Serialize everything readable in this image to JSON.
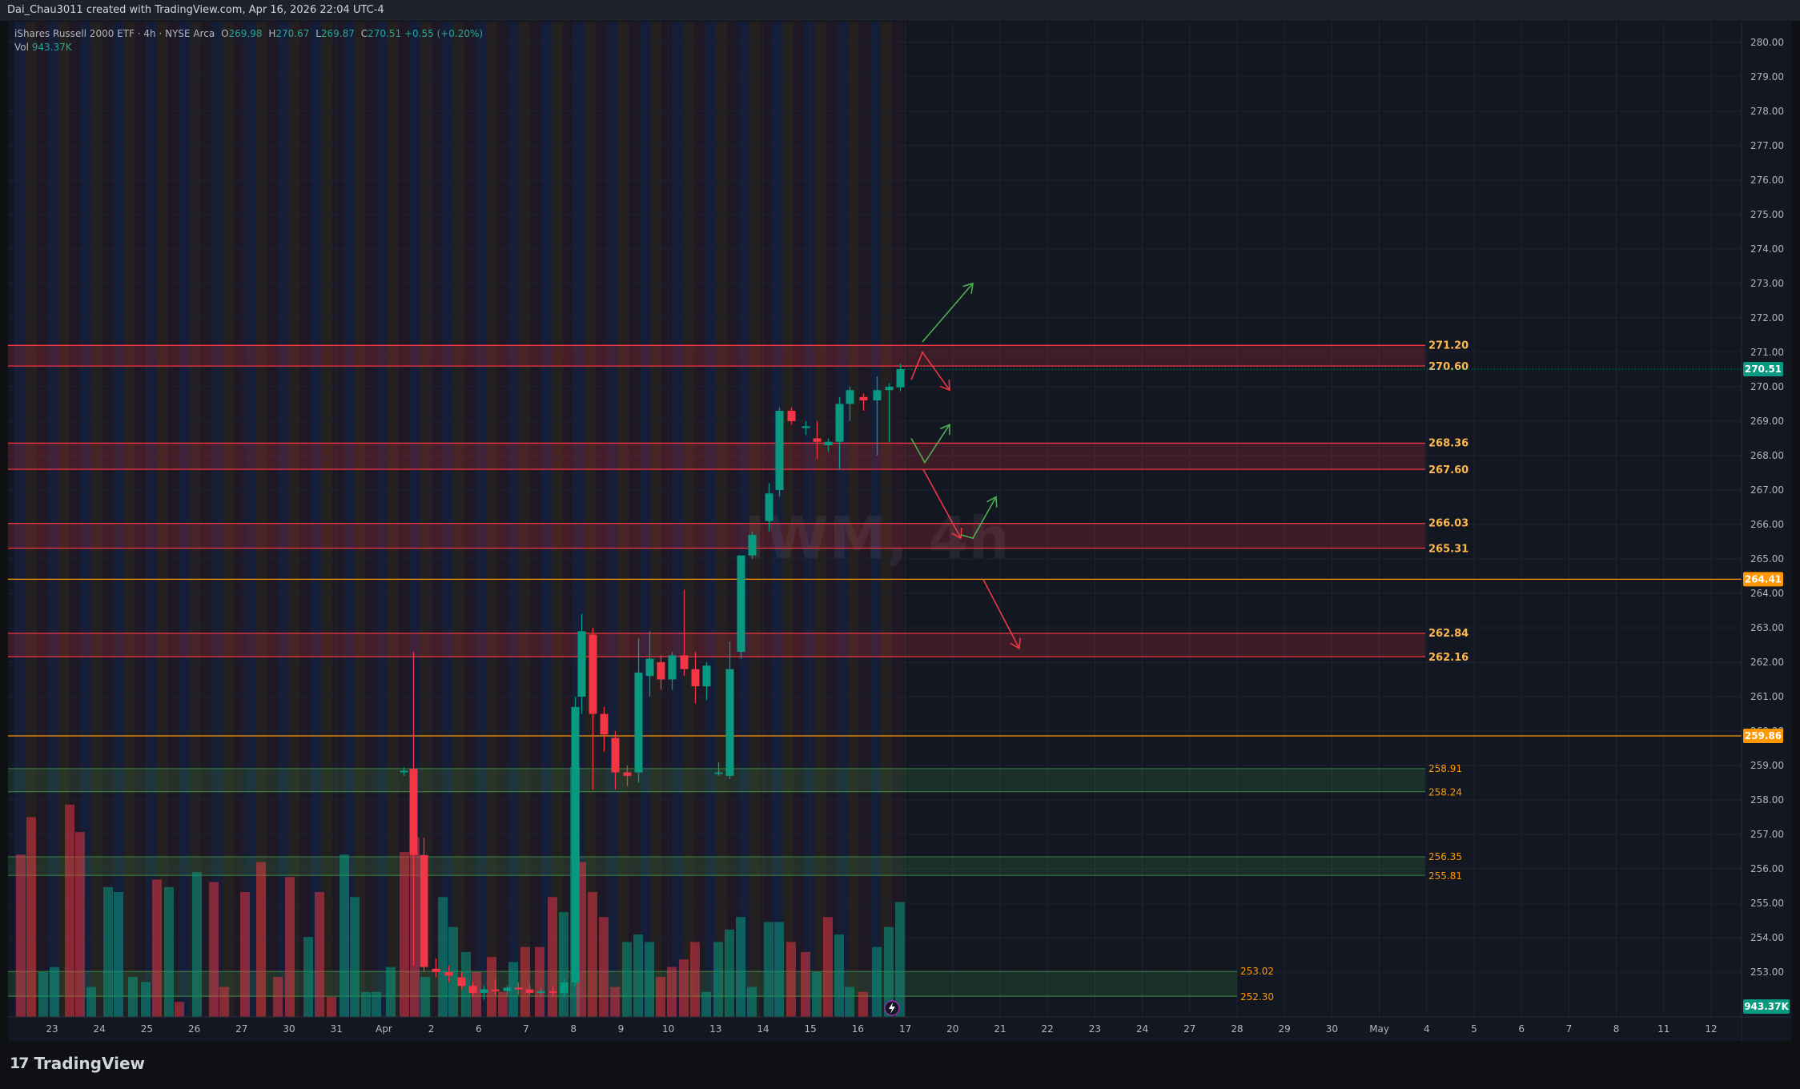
{
  "header": {
    "created_by": "Dai_Chau3011 created with TradingView.com, Apr 16, 2026 22:04 UTC-4"
  },
  "legend": {
    "symbol": "iShares Russell 2000 ETF · 4h · NYSE Arca",
    "open_label": "O",
    "open": "269.98",
    "high_label": "H",
    "high": "270.67",
    "low_label": "L",
    "low": "269.87",
    "close_label": "C",
    "close": "270.51",
    "change": "+0.55 (+0.20%)",
    "vol_label": "Vol",
    "vol": "943.37K"
  },
  "watermark": "IWM, 4h",
  "brand": {
    "name": "TradingView"
  },
  "colors": {
    "background": "#131722",
    "up": "#089981",
    "down": "#f23645",
    "zone_red": "#f23645",
    "zone_green": "#4caf50",
    "level_orange": "#ff9800",
    "arrow_green": "#4caf50",
    "arrow_red": "#f23645",
    "last_price_badge": "#089981"
  },
  "chart_data": {
    "type": "candlestick",
    "symbol": "IWM",
    "timeframe": "4h",
    "ylim": [
      251.7,
      280.6
    ],
    "y_ticks": [
      "280.00",
      "279.00",
      "278.00",
      "277.00",
      "276.00",
      "275.00",
      "274.00",
      "273.00",
      "272.00",
      "271.00",
      "270.00",
      "269.00",
      "268.00",
      "267.00",
      "266.00",
      "265.00",
      "264.00",
      "263.00",
      "262.00",
      "261.00",
      "260.00",
      "259.00",
      "258.00",
      "257.00",
      "256.00",
      "255.00",
      "254.00",
      "253.00"
    ],
    "x_ticks": [
      "23",
      "24",
      "25",
      "26",
      "27",
      "30",
      "31",
      "Apr",
      "2",
      "6",
      "7",
      "8",
      "9",
      "10",
      "13",
      "14",
      "15",
      "16",
      "17",
      "20",
      "21",
      "22",
      "23",
      "24",
      "27",
      "28",
      "29",
      "30",
      "May",
      "4",
      "5",
      "6",
      "7",
      "8",
      "11",
      "12"
    ],
    "candles": [
      {
        "x": 494.5,
        "o": 258.82,
        "h": 258.95,
        "l": 258.7,
        "c": 258.85
      },
      {
        "x": 506.5,
        "o": 258.9,
        "h": 262.3,
        "l": 253.2,
        "c": 256.4
      },
      {
        "x": 519.5,
        "o": 256.4,
        "h": 256.9,
        "l": 253.0,
        "c": 253.15
      },
      {
        "x": 534.5,
        "o": 253.1,
        "h": 253.4,
        "l": 252.85,
        "c": 253.0
      },
      {
        "x": 550.5,
        "o": 253.0,
        "h": 253.2,
        "l": 252.7,
        "c": 252.9
      },
      {
        "x": 566.5,
        "o": 252.85,
        "h": 253.0,
        "l": 252.5,
        "c": 252.6
      },
      {
        "x": 580.5,
        "o": 252.6,
        "h": 252.7,
        "l": 252.3,
        "c": 252.4
      },
      {
        "x": 594.5,
        "o": 252.4,
        "h": 252.6,
        "l": 252.2,
        "c": 252.5
      },
      {
        "x": 608.5,
        "o": 252.5,
        "h": 252.8,
        "l": 252.3,
        "c": 252.45
      },
      {
        "x": 623.5,
        "o": 252.45,
        "h": 252.6,
        "l": 252.3,
        "c": 252.55
      },
      {
        "x": 637.5,
        "o": 252.55,
        "h": 252.7,
        "l": 252.35,
        "c": 252.5
      },
      {
        "x": 651.5,
        "o": 252.5,
        "h": 252.65,
        "l": 252.35,
        "c": 252.4
      },
      {
        "x": 665.5,
        "o": 252.4,
        "h": 252.55,
        "l": 252.3,
        "c": 252.45
      },
      {
        "x": 680.5,
        "o": 252.45,
        "h": 252.6,
        "l": 252.3,
        "c": 252.4
      },
      {
        "x": 694.5,
        "o": 252.4,
        "h": 252.8,
        "l": 252.3,
        "c": 252.7
      },
      {
        "x": 708.5,
        "o": 252.7,
        "h": 261.0,
        "l": 252.6,
        "c": 260.7
      },
      {
        "x": 716.5,
        "o": 261.0,
        "h": 263.4,
        "l": 260.5,
        "c": 262.9
      },
      {
        "x": 730.5,
        "o": 262.8,
        "h": 263.0,
        "l": 258.3,
        "c": 260.5
      },
      {
        "x": 744.5,
        "o": 260.5,
        "h": 260.7,
        "l": 259.4,
        "c": 259.9
      },
      {
        "x": 758.5,
        "o": 259.8,
        "h": 260.0,
        "l": 258.3,
        "c": 258.8
      },
      {
        "x": 773.5,
        "o": 258.8,
        "h": 259.0,
        "l": 258.4,
        "c": 258.7
      },
      {
        "x": 787.5,
        "o": 258.8,
        "h": 262.7,
        "l": 258.5,
        "c": 261.7
      },
      {
        "x": 801.5,
        "o": 261.6,
        "h": 262.9,
        "l": 261.0,
        "c": 262.1
      },
      {
        "x": 815.5,
        "o": 262.0,
        "h": 262.2,
        "l": 261.2,
        "c": 261.5
      },
      {
        "x": 829.5,
        "o": 261.5,
        "h": 262.3,
        "l": 261.2,
        "c": 262.2
      },
      {
        "x": 844.5,
        "o": 262.2,
        "h": 264.1,
        "l": 261.6,
        "c": 261.8
      },
      {
        "x": 858.5,
        "o": 261.8,
        "h": 262.3,
        "l": 260.8,
        "c": 261.3
      },
      {
        "x": 872.5,
        "o": 261.3,
        "h": 262.0,
        "l": 260.9,
        "c": 261.9
      },
      {
        "x": 887.5,
        "o": 258.8,
        "h": 259.1,
        "l": 258.7,
        "c": 258.8
      },
      {
        "x": 901.5,
        "o": 258.7,
        "h": 262.6,
        "l": 258.6,
        "c": 261.8
      },
      {
        "x": 915.5,
        "o": 262.3,
        "h": 265.1,
        "l": 262.1,
        "c": 265.1
      },
      {
        "x": 929.5,
        "o": 265.1,
        "h": 265.8,
        "l": 265.0,
        "c": 265.7
      },
      {
        "x": 950.5,
        "o": 266.1,
        "h": 267.2,
        "l": 265.8,
        "c": 266.9
      },
      {
        "x": 963.5,
        "o": 267.0,
        "h": 269.4,
        "l": 266.8,
        "c": 269.3
      },
      {
        "x": 978.5,
        "o": 269.3,
        "h": 269.4,
        "l": 268.9,
        "c": 269.0
      },
      {
        "x": 996.5,
        "o": 268.8,
        "h": 269.0,
        "l": 268.6,
        "c": 268.85
      },
      {
        "x": 1010.5,
        "o": 268.5,
        "h": 269.0,
        "l": 267.9,
        "c": 268.4
      },
      {
        "x": 1024.5,
        "o": 268.3,
        "h": 268.5,
        "l": 268.1,
        "c": 268.4
      },
      {
        "x": 1038.5,
        "o": 268.4,
        "h": 269.7,
        "l": 267.6,
        "c": 269.5
      },
      {
        "x": 1051.5,
        "o": 269.5,
        "h": 270.0,
        "l": 269.0,
        "c": 269.9
      },
      {
        "x": 1068.5,
        "o": 269.7,
        "h": 269.8,
        "l": 269.3,
        "c": 269.6
      },
      {
        "x": 1085.5,
        "o": 269.6,
        "h": 270.3,
        "l": 268.0,
        "c": 269.9
      },
      {
        "x": 1100.5,
        "o": 269.9,
        "h": 270.1,
        "l": 268.4,
        "c": 270.0
      },
      {
        "x": 1114.5,
        "o": 269.98,
        "h": 270.67,
        "l": 269.87,
        "c": 270.51
      }
    ],
    "volume": [
      {
        "x": 16,
        "v": 0.65,
        "up": false
      },
      {
        "x": 29,
        "v": 0.8,
        "up": false
      },
      {
        "x": 44,
        "v": 0.18,
        "up": true
      },
      {
        "x": 58,
        "v": 0.2,
        "up": true
      },
      {
        "x": 77,
        "v": 0.85,
        "up": false
      },
      {
        "x": 90,
        "v": 0.74,
        "up": false
      },
      {
        "x": 104,
        "v": 0.12,
        "up": true
      },
      {
        "x": 125,
        "v": 0.52,
        "up": true
      },
      {
        "x": 138,
        "v": 0.5,
        "up": true
      },
      {
        "x": 156,
        "v": 0.16,
        "up": true
      },
      {
        "x": 172,
        "v": 0.14,
        "up": true
      },
      {
        "x": 186,
        "v": 0.55,
        "up": false
      },
      {
        "x": 201,
        "v": 0.52,
        "up": true
      },
      {
        "x": 214,
        "v": 0.06,
        "up": false
      },
      {
        "x": 236,
        "v": 0.58,
        "up": true
      },
      {
        "x": 257,
        "v": 0.54,
        "up": false
      },
      {
        "x": 270,
        "v": 0.12,
        "up": false
      },
      {
        "x": 296,
        "v": 0.5,
        "up": false
      },
      {
        "x": 316,
        "v": 0.62,
        "up": false
      },
      {
        "x": 337,
        "v": 0.16,
        "up": false
      },
      {
        "x": 352,
        "v": 0.56,
        "up": false
      },
      {
        "x": 375,
        "v": 0.32,
        "up": true
      },
      {
        "x": 389,
        "v": 0.5,
        "up": false
      },
      {
        "x": 404,
        "v": 0.08,
        "up": false
      },
      {
        "x": 420,
        "v": 0.65,
        "up": true
      },
      {
        "x": 433,
        "v": 0.48,
        "up": true
      },
      {
        "x": 447,
        "v": 0.1,
        "up": true
      },
      {
        "x": 460,
        "v": 0.1,
        "up": true
      },
      {
        "x": 478,
        "v": 0.2,
        "up": true
      },
      {
        "x": 495,
        "v": 0.66,
        "up": false
      },
      {
        "x": 508,
        "v": 0.72,
        "up": false
      },
      {
        "x": 521,
        "v": 0.16,
        "up": true
      },
      {
        "x": 543,
        "v": 0.48,
        "up": true
      },
      {
        "x": 556,
        "v": 0.36,
        "up": true
      },
      {
        "x": 572,
        "v": 0.26,
        "up": true
      },
      {
        "x": 585,
        "v": 0.18,
        "up": false
      },
      {
        "x": 604,
        "v": 0.24,
        "up": false
      },
      {
        "x": 618,
        "v": 0.1,
        "up": false
      },
      {
        "x": 631,
        "v": 0.22,
        "up": true
      },
      {
        "x": 646,
        "v": 0.28,
        "up": false
      },
      {
        "x": 664,
        "v": 0.28,
        "up": false
      },
      {
        "x": 680,
        "v": 0.48,
        "up": false
      },
      {
        "x": 694,
        "v": 0.42,
        "up": true
      },
      {
        "x": 708,
        "v": 1.0,
        "up": true
      },
      {
        "x": 716,
        "v": 0.62,
        "up": false
      },
      {
        "x": 730,
        "v": 0.5,
        "up": false
      },
      {
        "x": 744,
        "v": 0.4,
        "up": false
      },
      {
        "x": 758,
        "v": 0.12,
        "up": false
      },
      {
        "x": 773,
        "v": 0.3,
        "up": true
      },
      {
        "x": 787,
        "v": 0.33,
        "up": true
      },
      {
        "x": 801,
        "v": 0.3,
        "up": true
      },
      {
        "x": 815,
        "v": 0.16,
        "up": false
      },
      {
        "x": 829,
        "v": 0.2,
        "up": false
      },
      {
        "x": 844,
        "v": 0.23,
        "up": false
      },
      {
        "x": 858,
        "v": 0.3,
        "up": false
      },
      {
        "x": 872,
        "v": 0.1,
        "up": true
      },
      {
        "x": 887,
        "v": 0.3,
        "up": true
      },
      {
        "x": 901,
        "v": 0.35,
        "up": true
      },
      {
        "x": 915,
        "v": 0.4,
        "up": true
      },
      {
        "x": 929,
        "v": 0.12,
        "up": true
      },
      {
        "x": 950,
        "v": 0.38,
        "up": true
      },
      {
        "x": 963,
        "v": 0.38,
        "up": true
      },
      {
        "x": 978,
        "v": 0.3,
        "up": false
      },
      {
        "x": 996,
        "v": 0.26,
        "up": false
      },
      {
        "x": 1010,
        "v": 0.18,
        "up": true
      },
      {
        "x": 1024,
        "v": 0.4,
        "up": false
      },
      {
        "x": 1038,
        "v": 0.33,
        "up": true
      },
      {
        "x": 1051,
        "v": 0.12,
        "up": true
      },
      {
        "x": 1068,
        "v": 0.1,
        "up": false
      },
      {
        "x": 1085,
        "v": 0.28,
        "up": true
      },
      {
        "x": 1100,
        "v": 0.36,
        "up": true
      },
      {
        "x": 1114,
        "v": 0.46,
        "up": true
      }
    ],
    "zones": [
      {
        "top": 271.2,
        "bottom": 270.6,
        "type": "red",
        "top_label": "271.20",
        "bottom_label": "270.60"
      },
      {
        "top": 268.36,
        "bottom": 267.6,
        "type": "red",
        "top_label": "268.36",
        "bottom_label": "267.60"
      },
      {
        "top": 266.03,
        "bottom": 265.31,
        "type": "red",
        "top_label": "266.03",
        "bottom_label": "265.31"
      },
      {
        "top": 262.84,
        "bottom": 262.16,
        "type": "red",
        "top_label": "262.84",
        "bottom_label": "262.16"
      },
      {
        "top": 258.91,
        "bottom": 258.24,
        "type": "green",
        "top_label": "258.91",
        "bottom_label": "258.24"
      },
      {
        "top": 256.35,
        "bottom": 255.81,
        "type": "green",
        "top_label": "256.35",
        "bottom_label": "255.81"
      },
      {
        "top": 253.02,
        "bottom": 252.3,
        "type": "green",
        "top_label": "253.02",
        "bottom_label": "252.30"
      }
    ],
    "levels": [
      {
        "value": 264.41,
        "label": "264.41"
      },
      {
        "value": 259.86,
        "label": "259.86"
      }
    ],
    "last_price": {
      "value": 270.51,
      "label": "270.51"
    },
    "volume_badge": "943.37K",
    "annotations": [
      {
        "type": "arrow",
        "color": "green",
        "from": [
          1142,
          271.3
        ],
        "to": [
          1205,
          273.0
        ]
      },
      {
        "type": "arrow",
        "color": "red",
        "from": [
          1128,
          270.2
        ],
        "to": [
          1142,
          271.0
        ],
        "then": [
          1176,
          269.9
        ]
      },
      {
        "type": "arrow",
        "color": "green",
        "from": [
          1128,
          268.5
        ],
        "to": [
          1145,
          267.8
        ],
        "then": [
          1176,
          268.9
        ]
      },
      {
        "type": "arrow",
        "color": "red",
        "from": [
          1143,
          267.6
        ],
        "to": [
          1190,
          265.6
        ]
      },
      {
        "type": "arrow",
        "color": "green",
        "from": [
          1190,
          265.7
        ],
        "to": [
          1205,
          265.6
        ],
        "then": [
          1234,
          266.8
        ]
      },
      {
        "type": "arrow",
        "color": "red",
        "from": [
          1218,
          264.4
        ],
        "to": [
          1263,
          262.4
        ]
      }
    ]
  }
}
